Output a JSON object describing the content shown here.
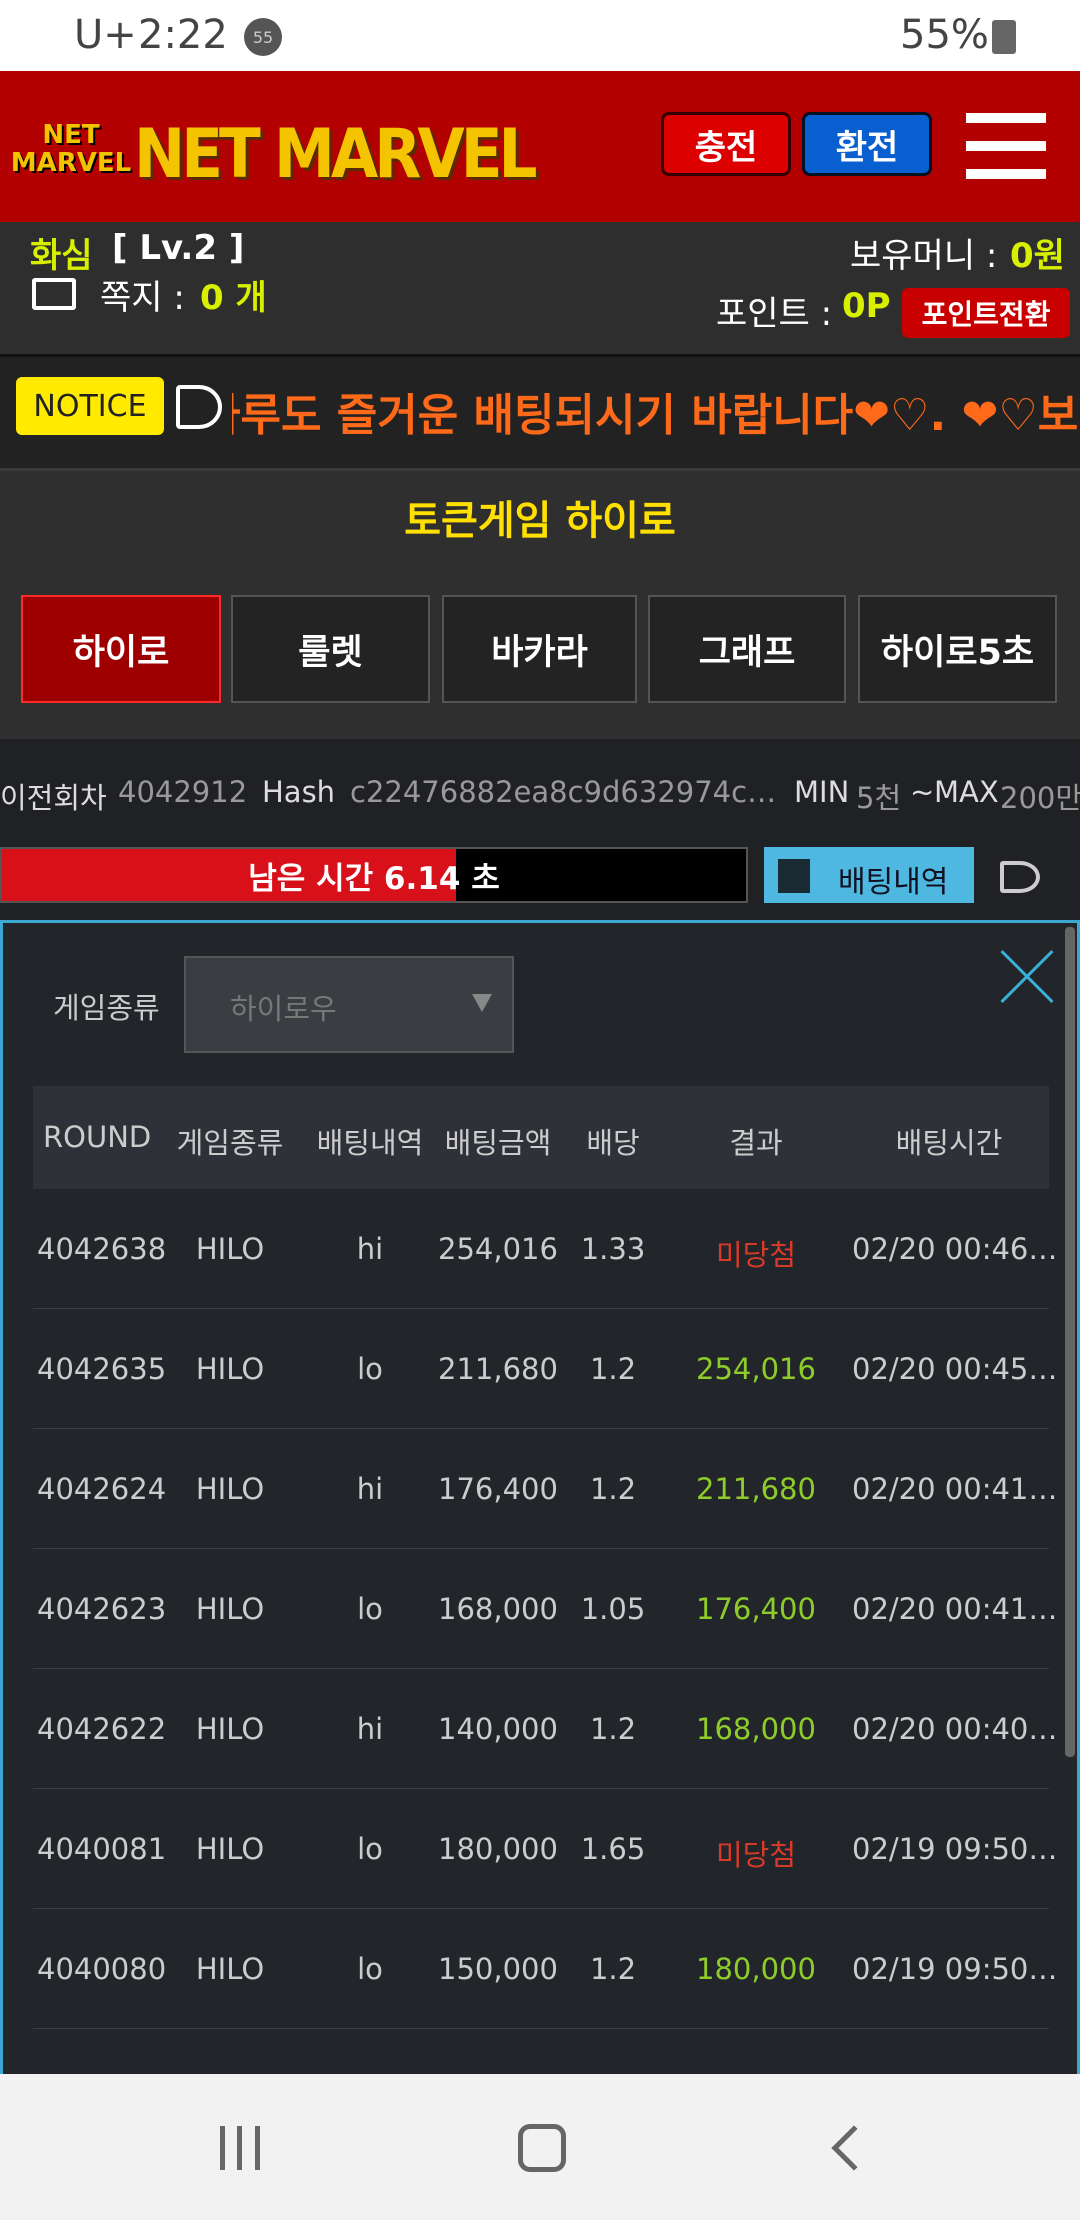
{
  "status_bar": {
    "carrier": "U+",
    "time": "2:22",
    "badge": "55",
    "battery": "55%"
  },
  "header": {
    "logo_top": "NET",
    "logo_bottom": "MARVEL",
    "logo_text": "NET MARVEL",
    "charge_button": "충전",
    "exchange_button": "환전"
  },
  "user": {
    "name": "화심",
    "level": "[ Lv.2 ]",
    "message_label": "쪽지 :",
    "message_count": "0 개",
    "money_label": "보유머니 :",
    "money": "0원",
    "point_label": "포인트 :",
    "point": "0P",
    "convert_button": "포인트전환"
  },
  "notice": {
    "badge": "NOTICE",
    "text": "하루도 즐거운 배팅되시기 바랍니다❤♡. ❤♡보안상 바"
  },
  "game": {
    "title": "토큰게임 하이로",
    "tabs": [
      "하이로",
      "룰렛",
      "바카라",
      "그래프",
      "하이로5초"
    ]
  },
  "info": {
    "prev_label": "이전회차",
    "prev_round": "4042912",
    "hash_label": "Hash",
    "hash": "c22476882ea8c9d632974c…",
    "min_label": "MIN",
    "min": "5천",
    "separator": "~",
    "max_label": "MAX",
    "max": "200만"
  },
  "timer": {
    "label": "남은 시간",
    "seconds": "6.14",
    "unit": "초",
    "history_button": "배팅내역"
  },
  "panel": {
    "filter_label": "게임종류",
    "filter_value": "하이로우",
    "table": {
      "headers": [
        "ROUND",
        "게임종류",
        "배팅내역",
        "배팅금액",
        "배당",
        "결과",
        "배팅시간"
      ],
      "rows": [
        [
          "4042638",
          "HILO",
          "hi",
          "254,016",
          "1.33",
          "미당첨",
          "02/20 00:46…"
        ],
        [
          "4042635",
          "HILO",
          "lo",
          "211,680",
          "1.2",
          "254,016",
          "02/20 00:45…"
        ],
        [
          "4042624",
          "HILO",
          "hi",
          "176,400",
          "1.2",
          "211,680",
          "02/20 00:41…"
        ],
        [
          "4042623",
          "HILO",
          "lo",
          "168,000",
          "1.05",
          "176,400",
          "02/20 00:41…"
        ],
        [
          "4042622",
          "HILO",
          "hi",
          "140,000",
          "1.2",
          "168,000",
          "02/20 00:40…"
        ],
        [
          "4040081",
          "HILO",
          "lo",
          "180,000",
          "1.65",
          "미당첨",
          "02/19 09:50…"
        ],
        [
          "4040080",
          "HILO",
          "lo",
          "150,000",
          "1.2",
          "180,000",
          "02/19 09:50…"
        ]
      ]
    }
  }
}
